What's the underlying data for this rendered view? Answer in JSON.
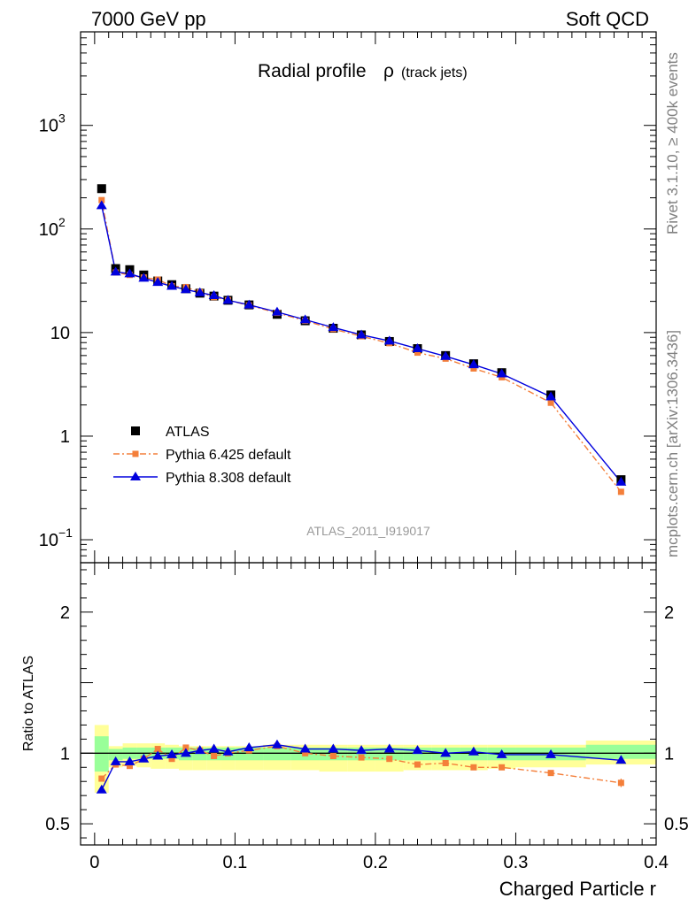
{
  "header": {
    "left": "7000 GeV pp",
    "right": "Soft QCD"
  },
  "side_text": {
    "rivet": "Rivet 3.1.10, ≥ 400k events",
    "mcplots": "mcplots.cern.ch [arXiv:1306.3436]"
  },
  "chart_data": [
    {
      "type": "scatter",
      "title": "Radial profile",
      "title_symbol": "ρ",
      "title_suffix": "(track jets)",
      "watermark": "ATLAS_2011_I919017",
      "yscale": "log",
      "ylim": [
        0.06,
        8000
      ],
      "xlim": [
        -0.01,
        0.4
      ],
      "y_ticks": [
        {
          "label": "10",
          "sup": "−1",
          "v": 0.1
        },
        {
          "label": "1",
          "sup": "",
          "v": 1
        },
        {
          "label": "10",
          "sup": "",
          "v": 10
        },
        {
          "label": "10",
          "sup": "2",
          "v": 100
        },
        {
          "label": "10",
          "sup": "3",
          "v": 1000
        }
      ],
      "legend_position": "bottom-left",
      "series": [
        {
          "name": "ATLAS",
          "color": "#000000",
          "marker": "square",
          "x": [
            0.005,
            0.015,
            0.025,
            0.035,
            0.045,
            0.055,
            0.065,
            0.075,
            0.085,
            0.095,
            0.11,
            0.13,
            0.15,
            0.17,
            0.19,
            0.21,
            0.23,
            0.25,
            0.27,
            0.29,
            0.325,
            0.375
          ],
          "y": [
            245,
            41.5,
            40.5,
            36,
            31.5,
            29,
            26.5,
            24,
            22.5,
            20.5,
            18.5,
            15,
            13,
            11,
            9.5,
            8.2,
            7.0,
            6.0,
            5.0,
            4.1,
            2.5,
            0.38
          ]
        },
        {
          "name": "Pythia 6.425 default",
          "color": "#f47f3a",
          "marker": "square-small",
          "line": "dash-dot",
          "x": [
            0.005,
            0.015,
            0.025,
            0.035,
            0.045,
            0.055,
            0.065,
            0.075,
            0.085,
            0.095,
            0.11,
            0.13,
            0.15,
            0.17,
            0.19,
            0.21,
            0.23,
            0.25,
            0.27,
            0.29,
            0.325,
            0.375
          ],
          "y": [
            190,
            38,
            36,
            34,
            32.5,
            28,
            27.5,
            24.5,
            22,
            20.5,
            18.3,
            15.5,
            13,
            10.8,
            9.2,
            7.9,
            6.4,
            5.6,
            4.5,
            3.7,
            2.1,
            0.29
          ]
        },
        {
          "name": "Pythia 8.308 default",
          "color": "#0000dd",
          "marker": "triangle",
          "line": "solid",
          "x": [
            0.005,
            0.015,
            0.025,
            0.035,
            0.045,
            0.055,
            0.065,
            0.075,
            0.085,
            0.095,
            0.11,
            0.13,
            0.15,
            0.17,
            0.19,
            0.21,
            0.23,
            0.25,
            0.27,
            0.29,
            0.325,
            0.375
          ],
          "y": [
            168,
            38.5,
            37,
            33.5,
            30.5,
            28,
            26,
            24.3,
            22.8,
            20.5,
            18.5,
            15.8,
            13.3,
            11.2,
            9.5,
            8.3,
            7.0,
            5.9,
            4.9,
            4.0,
            2.4,
            0.36
          ]
        }
      ]
    },
    {
      "type": "scatter",
      "ylabel": "Ratio to ATLAS",
      "xlabel": "Charged Particle r",
      "ylim": [
        0.35,
        2.35
      ],
      "xlim": [
        -0.01,
        0.4
      ],
      "y_ticks": [
        {
          "label": "0.5",
          "v": 0.5
        },
        {
          "label": "1",
          "v": 1
        },
        {
          "label": "2",
          "v": 2
        }
      ],
      "x_ticks": [
        {
          "label": "0",
          "v": 0
        },
        {
          "label": "0.1",
          "v": 0.1
        },
        {
          "label": "0.2",
          "v": 0.2
        },
        {
          "label": "0.3",
          "v": 0.3
        },
        {
          "label": "0.4",
          "v": 0.4
        }
      ],
      "bands": {
        "x_edges": [
          0,
          0.01,
          0.02,
          0.03,
          0.04,
          0.05,
          0.06,
          0.07,
          0.08,
          0.09,
          0.1,
          0.12,
          0.14,
          0.16,
          0.18,
          0.2,
          0.22,
          0.24,
          0.26,
          0.28,
          0.3,
          0.35,
          0.4
        ],
        "yellow_low": [
          0.72,
          0.9,
          0.91,
          0.9,
          0.89,
          0.89,
          0.88,
          0.88,
          0.88,
          0.88,
          0.88,
          0.88,
          0.88,
          0.87,
          0.87,
          0.87,
          0.88,
          0.88,
          0.88,
          0.89,
          0.9,
          0.92
        ],
        "yellow_high": [
          1.2,
          1.05,
          1.07,
          1.07,
          1.07,
          1.06,
          1.05,
          1.05,
          1.05,
          1.05,
          1.05,
          1.06,
          1.06,
          1.06,
          1.06,
          1.06,
          1.06,
          1.06,
          1.06,
          1.06,
          1.06,
          1.09
        ],
        "green_low": [
          0.87,
          0.95,
          0.96,
          0.96,
          0.96,
          0.96,
          0.95,
          0.95,
          0.95,
          0.95,
          0.95,
          0.95,
          0.95,
          0.95,
          0.95,
          0.95,
          0.95,
          0.95,
          0.95,
          0.95,
          0.95,
          0.96
        ],
        "green_high": [
          1.12,
          1.03,
          1.04,
          1.04,
          1.04,
          1.04,
          1.04,
          1.04,
          1.04,
          1.04,
          1.04,
          1.04,
          1.04,
          1.04,
          1.04,
          1.04,
          1.04,
          1.04,
          1.04,
          1.04,
          1.04,
          1.06
        ],
        "yellow_color": "#ffff99",
        "green_color": "#99ff99"
      },
      "series": [
        {
          "name": "Pythia 6.425 default",
          "color": "#f47f3a",
          "x": [
            0.005,
            0.015,
            0.025,
            0.035,
            0.045,
            0.055,
            0.065,
            0.075,
            0.085,
            0.095,
            0.11,
            0.13,
            0.15,
            0.17,
            0.19,
            0.21,
            0.23,
            0.25,
            0.27,
            0.29,
            0.325,
            0.375
          ],
          "y": [
            0.82,
            0.92,
            0.91,
            0.96,
            1.03,
            0.96,
            1.04,
            1.02,
            0.98,
            1.0,
            1.02,
            1.05,
            1.0,
            0.98,
            0.97,
            0.96,
            0.92,
            0.93,
            0.9,
            0.9,
            0.86,
            0.79
          ],
          "err": [
            0.02,
            0.02,
            0.02,
            0.01,
            0.01,
            0.01,
            0.01,
            0.01,
            0.01,
            0.01,
            0.01,
            0.01,
            0.01,
            0.01,
            0.01,
            0.01,
            0.01,
            0.01,
            0.01,
            0.01,
            0.01,
            0.03
          ]
        },
        {
          "name": "Pythia 8.308 default",
          "color": "#0000dd",
          "x": [
            0.005,
            0.015,
            0.025,
            0.035,
            0.045,
            0.055,
            0.065,
            0.075,
            0.085,
            0.095,
            0.11,
            0.13,
            0.15,
            0.17,
            0.19,
            0.21,
            0.23,
            0.25,
            0.27,
            0.29,
            0.325,
            0.375
          ],
          "y": [
            0.74,
            0.94,
            0.94,
            0.96,
            0.98,
            0.99,
            1.0,
            1.02,
            1.03,
            1.01,
            1.04,
            1.06,
            1.03,
            1.03,
            1.02,
            1.03,
            1.02,
            1.0,
            1.01,
            0.99,
            0.99,
            0.95
          ]
        }
      ]
    }
  ]
}
